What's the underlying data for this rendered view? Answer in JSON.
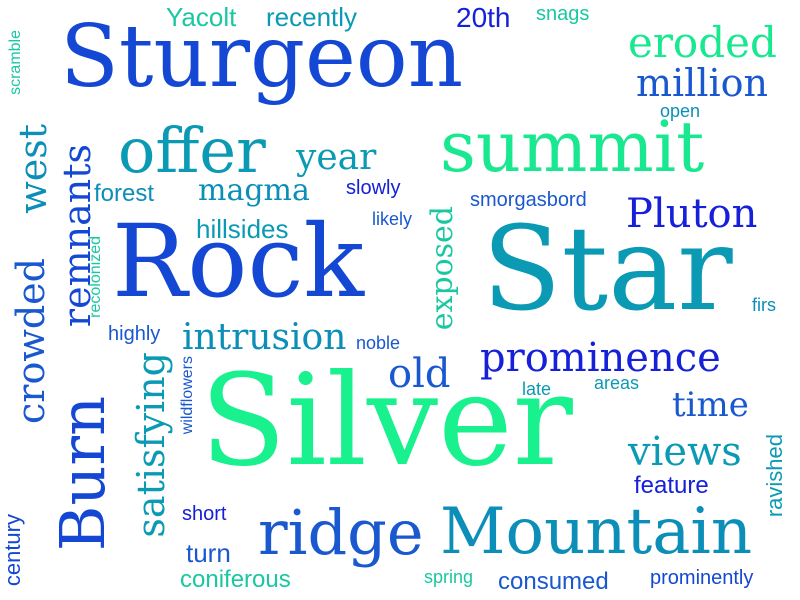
{
  "words": [
    {
      "text": "Silver",
      "color": "#19f08e"
    },
    {
      "text": "Star",
      "color": "#0b9ab4"
    },
    {
      "text": "Rock",
      "color": "#1448d4"
    },
    {
      "text": "Sturgeon",
      "color": "#1448d4"
    },
    {
      "text": "Mountain",
      "color": "#0b8fb8"
    },
    {
      "text": "summit",
      "color": "#19e890"
    },
    {
      "text": "ridge",
      "color": "#1a58cf"
    },
    {
      "text": "offer",
      "color": "#0b9ab4"
    },
    {
      "text": "Burn",
      "color": "#1448d4"
    },
    {
      "text": "prominence",
      "color": "#1520d8"
    },
    {
      "text": "eroded",
      "color": "#19e890"
    },
    {
      "text": "million",
      "color": "#1a58cf"
    },
    {
      "text": "Pluton",
      "color": "#1520d8"
    },
    {
      "text": "views",
      "color": "#0b9ab4"
    },
    {
      "text": "time",
      "color": "#1a58cf"
    },
    {
      "text": "old",
      "color": "#1a58cf"
    },
    {
      "text": "year",
      "color": "#0b9ab4"
    },
    {
      "text": "magma",
      "color": "#0b8fb8"
    },
    {
      "text": "intrusion",
      "color": "#0b8fb8"
    },
    {
      "text": "satisfying",
      "color": "#0b9ab4"
    },
    {
      "text": "remnants",
      "color": "#1448d4"
    },
    {
      "text": "crowded",
      "color": "#1a58cf"
    },
    {
      "text": "west",
      "color": "#0b8fb8"
    },
    {
      "text": "exposed",
      "color": "#19c8a0"
    },
    {
      "text": "Yacolt",
      "color": "#19c8a0"
    },
    {
      "text": "recently",
      "color": "#0b9ab4"
    },
    {
      "text": "20th",
      "color": "#1520d8"
    },
    {
      "text": "snags",
      "color": "#19c8a0"
    },
    {
      "text": "scramble",
      "color": "#19c8a0"
    },
    {
      "text": "open",
      "color": "#0b8fb8"
    },
    {
      "text": "forest",
      "color": "#0b8fb8"
    },
    {
      "text": "slowly",
      "color": "#1520d8"
    },
    {
      "text": "smorgasbord",
      "color": "#1a58cf"
    },
    {
      "text": "hillsides",
      "color": "#0b9ab4"
    },
    {
      "text": "likely",
      "color": "#1a58cf"
    },
    {
      "text": "recolonized",
      "color": "#19c8a0"
    },
    {
      "text": "highly",
      "color": "#1a58cf"
    },
    {
      "text": "noble",
      "color": "#1a58cf"
    },
    {
      "text": "firs",
      "color": "#0b8fb8"
    },
    {
      "text": "wildflowers",
      "color": "#1a58cf"
    },
    {
      "text": "late",
      "color": "#0b9ab4"
    },
    {
      "text": "areas",
      "color": "#0b9ab4"
    },
    {
      "text": "ravished",
      "color": "#0b9ab4"
    },
    {
      "text": "feature",
      "color": "#1520d8"
    },
    {
      "text": "century",
      "color": "#1448d4"
    },
    {
      "text": "short",
      "color": "#1520d8"
    },
    {
      "text": "turn",
      "color": "#1a58cf"
    },
    {
      "text": "coniferous",
      "color": "#19c8a0"
    },
    {
      "text": "spring",
      "color": "#19c8a0"
    },
    {
      "text": "consumed",
      "color": "#1a58cf"
    },
    {
      "text": "prominently",
      "color": "#1448d4"
    }
  ]
}
